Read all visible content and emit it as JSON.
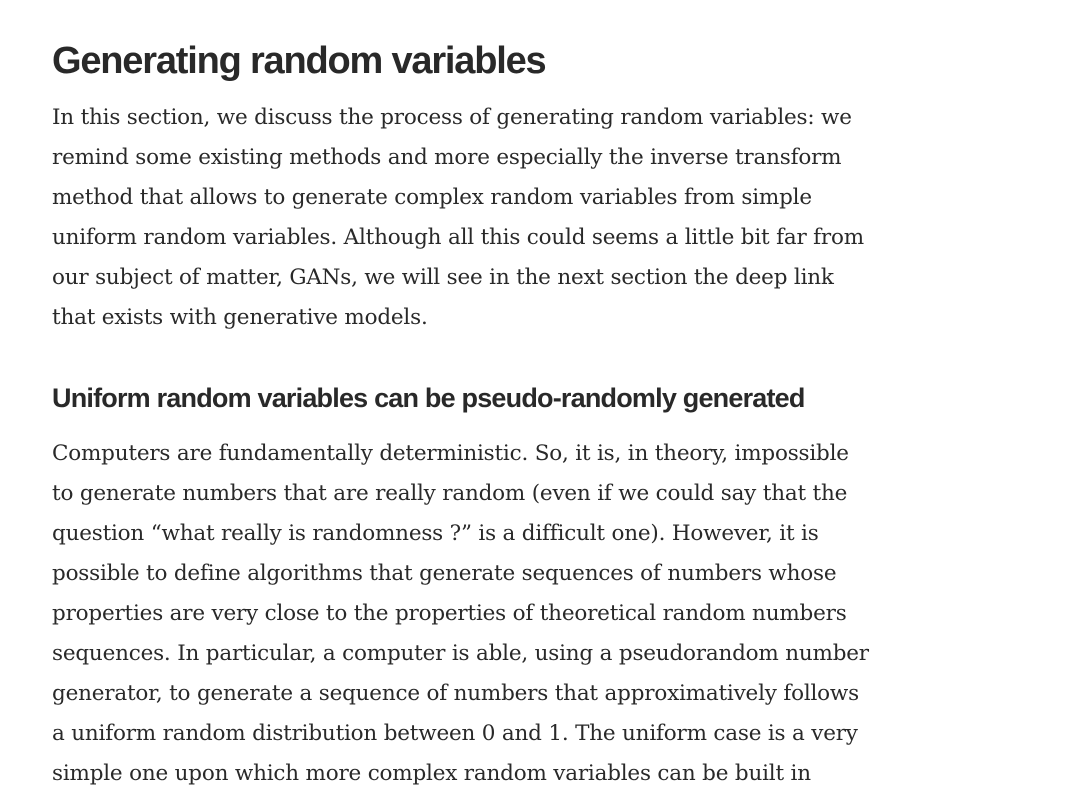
{
  "section": {
    "title": "Generating random variables",
    "intro_lines": [
      "In this section, we discuss the process of generating random variables: we",
      "remind some existing methods and more especially the inverse transform",
      "method that allows to generate complex random variables from simple",
      "uniform random variables. Although all this could seems a little bit far from",
      "our subject of matter, GANs, we will see in the next section the deep link",
      "that exists with generative models."
    ]
  },
  "subsection": {
    "title": "Uniform random variables can be pseudo-randomly generated",
    "body_lines": [
      "Computers are fundamentally deterministic. So, it is, in theory, impossible",
      "to generate numbers that are really random (even if we could say that the",
      "question “what really is randomness ?” is a difficult one). However, it is",
      "possible to define algorithms that generate sequences of numbers whose",
      "properties are very close to the properties of theoretical random numbers",
      "sequences. In particular, a computer is able, using a pseudorandom number",
      "generator, to generate a sequence of numbers that approximatively follows",
      "a uniform random distribution between 0 and 1. The uniform case is a very",
      "simple one upon which more complex random variables can be built in"
    ]
  }
}
